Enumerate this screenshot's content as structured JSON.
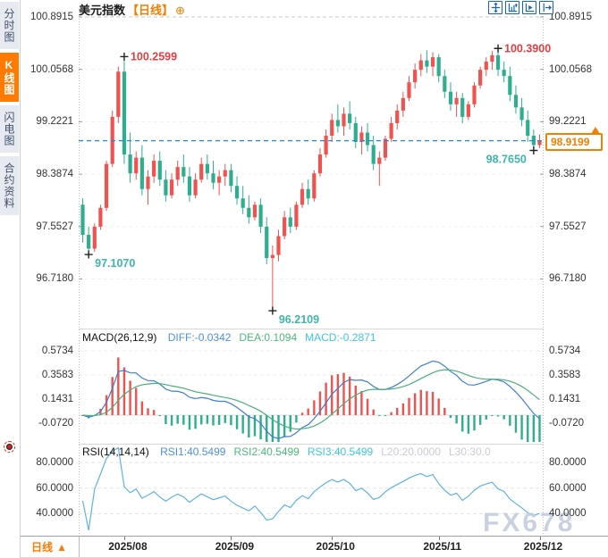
{
  "sidebar": {
    "tabs": [
      {
        "label": "分时图",
        "active": false
      },
      {
        "label": "K线图",
        "active": true
      },
      {
        "label": "闪电图",
        "active": false
      },
      {
        "label": "合约资料",
        "active": false
      }
    ]
  },
  "header": {
    "title": "美元指数",
    "period_tag": "【日线】",
    "expand_icon": "⊕",
    "tools": [
      "crosshair-move",
      "axis-scale",
      "axis-play",
      "pan-right"
    ]
  },
  "watermark": "FX678",
  "bottom_bar": {
    "period_label": "日线",
    "period_arrow": "▲"
  },
  "colors": {
    "up": "#ef5350",
    "down": "#2fae8f",
    "price_line": "#1e88e5",
    "price_tag": "#f08000",
    "accent_orange": "#ff7a00",
    "diff_line": "#3f7fd0",
    "dea_line": "#4caf7d",
    "rsi_line": "#5fb3e0",
    "high_marker": "#e23e42",
    "low_marker": "#3eb7a6",
    "toolbar_icon": "#1565c0",
    "watermark_color": "#c5cede"
  },
  "chart_data": {
    "type": "candlestick",
    "symbol": "美元指数",
    "period": "日线",
    "x_axis": {
      "labels": [
        "2025/08",
        "2025/09",
        "2025/10",
        "2025/11",
        "2025/12"
      ],
      "label_indices": [
        7,
        25,
        42,
        60,
        77
      ]
    },
    "main": {
      "y_ticks": [
        "100.8915",
        "100.0568",
        "99.2221",
        "98.3874",
        "97.5527",
        "96.7180"
      ],
      "current_price": "98.9199",
      "markers": [
        {
          "text": "100.2599",
          "index": 7,
          "price": 100.2599,
          "kind": "high",
          "side": "right"
        },
        {
          "text": "100.3900",
          "index": 70,
          "price": 100.39,
          "kind": "high",
          "side": "right"
        },
        {
          "text": "97.1070",
          "index": 1,
          "price": 97.107,
          "kind": "low",
          "side": "right"
        },
        {
          "text": "96.2109",
          "index": 32,
          "price": 96.2109,
          "kind": "low",
          "side": "right"
        },
        {
          "text": "98.7650",
          "index": 76,
          "price": 98.765,
          "kind": "low",
          "side": "left"
        }
      ],
      "candles": [
        [
          97.9,
          98.0,
          97.3,
          97.42
        ],
        [
          97.42,
          97.55,
          97.11,
          97.2
        ],
        [
          97.2,
          97.6,
          97.15,
          97.55
        ],
        [
          97.55,
          97.9,
          97.5,
          97.85
        ],
        [
          97.85,
          98.6,
          97.8,
          98.55
        ],
        [
          98.55,
          99.4,
          98.5,
          99.3
        ],
        [
          99.3,
          100.1,
          99.2,
          100.02
        ],
        [
          100.02,
          100.26,
          98.55,
          98.7
        ],
        [
          98.7,
          99.05,
          98.25,
          98.4
        ],
        [
          98.4,
          98.75,
          98.3,
          98.65
        ],
        [
          98.65,
          98.85,
          98.05,
          98.15
        ],
        [
          98.15,
          98.45,
          97.9,
          98.35
        ],
        [
          98.35,
          98.7,
          98.25,
          98.6
        ],
        [
          98.6,
          98.75,
          98.2,
          98.3
        ],
        [
          98.3,
          98.45,
          97.95,
          98.05
        ],
        [
          98.05,
          98.4,
          98.0,
          98.3
        ],
        [
          98.3,
          98.6,
          98.2,
          98.5
        ],
        [
          98.5,
          98.7,
          98.25,
          98.35
        ],
        [
          98.35,
          98.5,
          97.95,
          98.05
        ],
        [
          98.05,
          98.4,
          98.0,
          98.3
        ],
        [
          98.3,
          98.65,
          98.25,
          98.55
        ],
        [
          98.55,
          98.7,
          98.3,
          98.4
        ],
        [
          98.4,
          98.6,
          98.15,
          98.25
        ],
        [
          98.25,
          98.45,
          98.05,
          98.35
        ],
        [
          98.35,
          98.55,
          98.2,
          98.45
        ],
        [
          98.45,
          98.55,
          98.1,
          98.2
        ],
        [
          98.2,
          98.35,
          97.9,
          98.0
        ],
        [
          98.0,
          98.2,
          97.75,
          97.85
        ],
        [
          97.85,
          98.05,
          97.6,
          97.7
        ],
        [
          97.7,
          97.95,
          97.65,
          97.9
        ],
        [
          97.9,
          98.0,
          97.45,
          97.55
        ],
        [
          97.55,
          97.7,
          96.95,
          97.05
        ],
        [
          97.05,
          97.25,
          96.21,
          97.1
        ],
        [
          97.1,
          97.5,
          97.0,
          97.4
        ],
        [
          97.4,
          97.8,
          97.35,
          97.7
        ],
        [
          97.7,
          97.85,
          97.45,
          97.55
        ],
        [
          97.55,
          97.95,
          97.5,
          97.9
        ],
        [
          97.9,
          98.25,
          97.85,
          98.15
        ],
        [
          98.15,
          98.3,
          97.9,
          98.0
        ],
        [
          98.0,
          98.45,
          97.95,
          98.4
        ],
        [
          98.4,
          98.8,
          98.35,
          98.7
        ],
        [
          98.7,
          99.1,
          98.65,
          99.0
        ],
        [
          99.0,
          99.35,
          98.9,
          99.25
        ],
        [
          99.25,
          99.5,
          99.05,
          99.15
        ],
        [
          99.15,
          99.45,
          99.0,
          99.35
        ],
        [
          99.35,
          99.55,
          99.1,
          99.2
        ],
        [
          99.2,
          99.3,
          98.8,
          98.9
        ],
        [
          98.9,
          99.15,
          98.7,
          99.05
        ],
        [
          99.05,
          99.2,
          98.75,
          98.85
        ],
        [
          98.85,
          99.0,
          98.45,
          98.55
        ],
        [
          98.55,
          98.75,
          98.2,
          98.65
        ],
        [
          98.65,
          99.0,
          98.6,
          98.95
        ],
        [
          98.95,
          99.3,
          98.9,
          99.2
        ],
        [
          99.2,
          99.5,
          99.1,
          99.4
        ],
        [
          99.4,
          99.7,
          99.3,
          99.6
        ],
        [
          99.6,
          99.95,
          99.55,
          99.85
        ],
        [
          99.85,
          100.15,
          99.75,
          100.05
        ],
        [
          100.05,
          100.3,
          99.95,
          100.2
        ],
        [
          100.2,
          100.36,
          100.0,
          100.1
        ],
        [
          100.1,
          100.33,
          99.95,
          100.25
        ],
        [
          100.25,
          100.3,
          99.85,
          99.95
        ],
        [
          99.95,
          100.05,
          99.6,
          99.7
        ],
        [
          99.7,
          99.85,
          99.4,
          99.5
        ],
        [
          99.5,
          99.7,
          99.3,
          99.6
        ],
        [
          99.6,
          99.68,
          99.2,
          99.3
        ],
        [
          99.3,
          99.55,
          99.25,
          99.5
        ],
        [
          99.5,
          99.85,
          99.45,
          99.8
        ],
        [
          99.8,
          100.1,
          99.75,
          100.05
        ],
        [
          100.05,
          100.25,
          99.95,
          100.18
        ],
        [
          100.18,
          100.35,
          100.05,
          100.28
        ],
        [
          100.28,
          100.39,
          99.95,
          100.05
        ],
        [
          100.05,
          100.18,
          99.85,
          99.95
        ],
        [
          99.95,
          100.1,
          99.55,
          99.65
        ],
        [
          99.65,
          99.8,
          99.35,
          99.45
        ],
        [
          99.45,
          99.6,
          99.15,
          99.25
        ],
        [
          99.25,
          99.4,
          98.9,
          99.0
        ],
        [
          99.0,
          99.1,
          98.765,
          98.85
        ],
        [
          98.85,
          99.02,
          98.8,
          98.9199
        ]
      ]
    },
    "macd": {
      "title": "MACD(26,12,9)",
      "params": [
        26,
        12,
        9
      ],
      "readouts": [
        {
          "text": "DIFF:-0.0342",
          "color": "#4f8fe0"
        },
        {
          "text": "DEA:0.1094",
          "color": "#4db87c"
        },
        {
          "text": "MACD:-0.2871",
          "color": "#3ec6dd"
        }
      ],
      "y_ticks": [
        "0.5734",
        "0.3583",
        "0.1431",
        "-0.0720"
      ]
    },
    "rsi": {
      "title": "RSI(14,14,14)",
      "params": [
        14,
        14,
        14
      ],
      "readouts": [
        {
          "text": "RSI1:40.5499",
          "color": "#4f8fe0"
        },
        {
          "text": "RSI2:40.5499",
          "color": "#4db87c"
        },
        {
          "text": "RSI3:40.5499",
          "color": "#3ec6dd"
        },
        {
          "text": "L20:20.0000",
          "color": "#c9ccd4"
        },
        {
          "text": "L30:30.0",
          "color": "#c9ccd4"
        }
      ],
      "y_ticks": [
        "80.0000",
        "60.0000",
        "40.0000"
      ]
    }
  }
}
